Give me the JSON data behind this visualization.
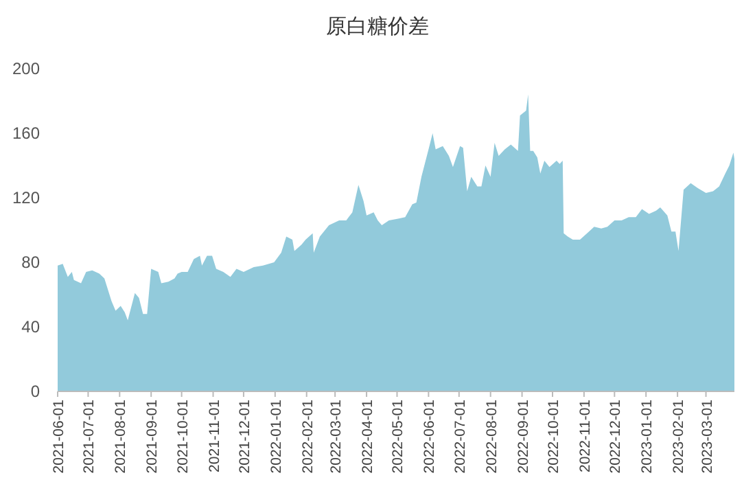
{
  "chart_data": {
    "type": "area",
    "title": "原白糖价差",
    "x": [
      "2021-06-01",
      "2021-06-06",
      "2021-06-11",
      "2021-06-15",
      "2021-06-17",
      "2021-06-24",
      "2021-06-29",
      "2021-07-05",
      "2021-07-12",
      "2021-07-17",
      "2021-07-24",
      "2021-07-28",
      "2021-08-02",
      "2021-08-06",
      "2021-08-09",
      "2021-08-16",
      "2021-08-20",
      "2021-08-24",
      "2021-08-28",
      "2021-09-01",
      "2021-09-08",
      "2021-09-11",
      "2021-09-18",
      "2021-09-24",
      "2021-09-27",
      "2021-10-01",
      "2021-10-07",
      "2021-10-13",
      "2021-10-19",
      "2021-10-21",
      "2021-10-26",
      "2021-10-31",
      "2021-11-04",
      "2021-11-11",
      "2021-11-18",
      "2021-11-24",
      "2021-12-01",
      "2021-12-11",
      "2021-12-20",
      "2021-12-31",
      "2022-01-07",
      "2022-01-12",
      "2022-01-18",
      "2022-01-20",
      "2022-01-27",
      "2022-01-31",
      "2022-02-07",
      "2022-02-08",
      "2022-02-14",
      "2022-02-23",
      "2022-03-05",
      "2022-03-12",
      "2022-03-18",
      "2022-03-24",
      "2022-03-29",
      "2022-04-01",
      "2022-04-08",
      "2022-04-12",
      "2022-04-16",
      "2022-04-23",
      "2022-05-02",
      "2022-05-09",
      "2022-05-16",
      "2022-05-20",
      "2022-05-25",
      "2022-06-01",
      "2022-06-05",
      "2022-06-08",
      "2022-06-15",
      "2022-06-21",
      "2022-06-25",
      "2022-07-02",
      "2022-07-05",
      "2022-07-09",
      "2022-07-13",
      "2022-07-19",
      "2022-07-23",
      "2022-07-27",
      "2022-08-01",
      "2022-08-05",
      "2022-08-09",
      "2022-08-15",
      "2022-08-21",
      "2022-08-28",
      "2022-08-30",
      "2022-09-05",
      "2022-09-07",
      "2022-09-09",
      "2022-09-12",
      "2022-09-16",
      "2022-09-19",
      "2022-09-23",
      "2022-09-28",
      "2022-10-05",
      "2022-10-08",
      "2022-10-11",
      "2022-10-12",
      "2022-10-16",
      "2022-10-21",
      "2022-10-28",
      "2022-11-04",
      "2022-11-11",
      "2022-11-18",
      "2022-11-24",
      "2022-12-01",
      "2022-12-08",
      "2022-12-15",
      "2022-12-22",
      "2022-12-28",
      "2023-01-04",
      "2023-01-11",
      "2023-01-15",
      "2023-01-22",
      "2023-01-26",
      "2023-01-30",
      "2023-02-02",
      "2023-02-07",
      "2023-02-14",
      "2023-02-21",
      "2023-03-01",
      "2023-03-08",
      "2023-03-14",
      "2023-03-20",
      "2023-03-24",
      "2023-03-28",
      "2023-03-29"
    ],
    "series": [
      {
        "color": "#92cadb",
        "values": [
          78,
          79,
          71,
          74,
          69,
          67,
          74,
          75,
          73,
          70,
          56,
          50,
          53,
          49,
          44,
          61,
          58,
          48,
          48,
          76,
          74,
          67,
          68,
          70,
          73,
          74,
          74,
          82,
          84,
          78,
          84,
          84,
          76,
          74,
          71,
          76,
          74,
          77,
          78,
          80,
          86,
          96,
          94,
          87,
          91,
          94,
          98,
          86,
          96,
          103,
          106,
          106,
          111,
          128,
          118,
          109,
          111,
          106,
          103,
          106,
          107,
          108,
          116,
          117,
          133,
          150,
          160,
          150,
          152,
          146,
          139,
          152,
          151,
          124,
          133,
          127,
          127,
          140,
          133,
          154,
          146,
          150,
          153,
          149,
          171,
          174,
          184,
          149,
          149,
          145,
          135,
          143,
          139,
          143,
          141,
          143,
          98,
          96,
          94,
          94,
          98,
          102,
          101,
          102,
          106,
          106,
          108,
          108,
          113,
          110,
          112,
          114,
          109,
          99,
          99,
          87,
          125,
          129,
          126,
          123,
          124,
          127,
          135,
          140,
          148,
          144
        ]
      }
    ],
    "xlim": [
      "2021-06-01",
      "2023-03-29"
    ],
    "xticks": [
      "2021-06-01",
      "2021-07-01",
      "2021-08-01",
      "2021-09-01",
      "2021-10-01",
      "2021-11-01",
      "2021-12-01",
      "2022-01-01",
      "2022-02-01",
      "2022-03-01",
      "2022-04-01",
      "2022-05-01",
      "2022-06-01",
      "2022-07-01",
      "2022-08-01",
      "2022-09-01",
      "2022-10-01",
      "2022-11-01",
      "2022-12-01",
      "2023-01-01",
      "2023-02-01",
      "2023-03-01"
    ],
    "ylim": [
      0,
      200
    ],
    "yticks": [
      0,
      40,
      80,
      120,
      160,
      200
    ]
  }
}
